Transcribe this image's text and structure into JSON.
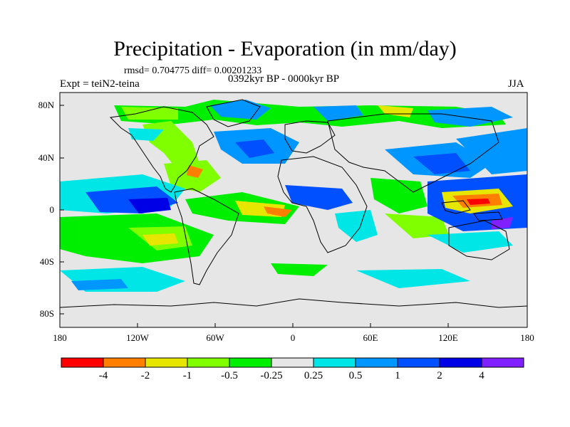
{
  "title": "Precipitation - Evaporation (in mm/day)",
  "stats": "rmsd= 0.704775 diff= 0.00201233",
  "experiment": "Expt = teiN2-teina",
  "period": "0392kyr BP - 0000kyr BP",
  "season": "JJA",
  "lat_labels": [
    "80N",
    "40N",
    "0",
    "40S",
    "80S"
  ],
  "lon_labels": [
    "180",
    "120W",
    "60W",
    "0",
    "60E",
    "120E",
    "180"
  ],
  "colorbar": {
    "labels": [
      "-4",
      "-2",
      "-1",
      "-0.5",
      "-0.25",
      "0.25",
      "0.5",
      "1",
      "2",
      "4"
    ],
    "colors": [
      "#ff0000",
      "#ff8000",
      "#e6e600",
      "#80ff00",
      "#00ee00",
      "#e6e6e6",
      "#00e6e6",
      "#0096ff",
      "#0050ff",
      "#0000e6",
      "#8020ff"
    ]
  }
}
